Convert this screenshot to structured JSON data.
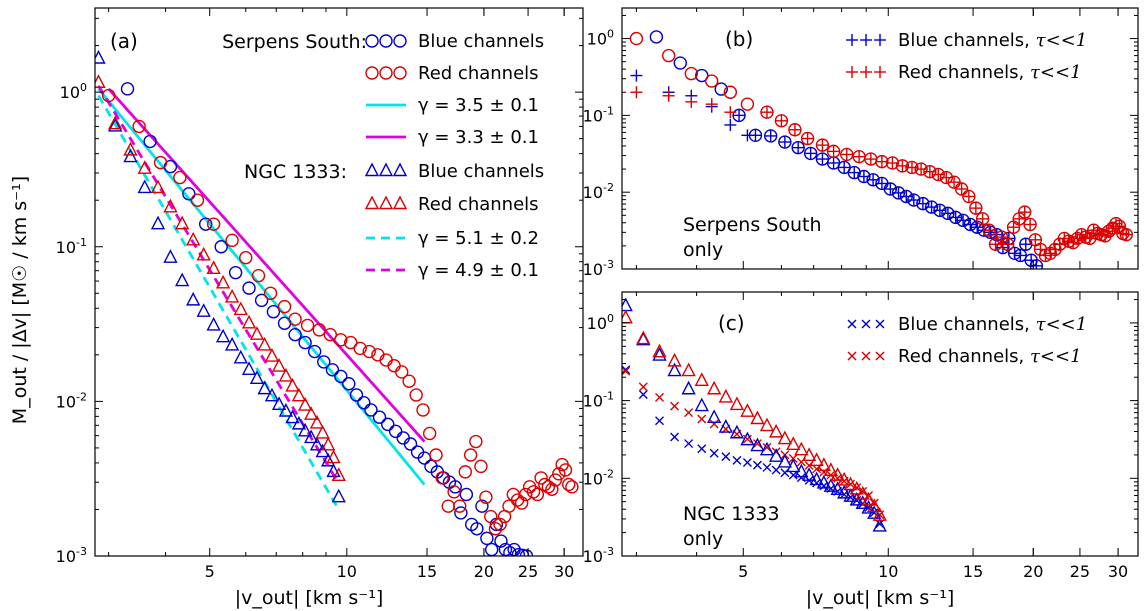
{
  "chart_data": [
    {
      "panel_label": "(a)",
      "type": "scatter",
      "xscale": "log",
      "yscale": "log",
      "xlim": [
        2.8,
        33
      ],
      "ylim": [
        0.001,
        3.5
      ],
      "ylabel": "M_out / |Δv| [M☉ / km s⁻¹]",
      "xlabel": "|v_out| [km s⁻¹]",
      "xticks": [
        5,
        10,
        15,
        20,
        25,
        30
      ],
      "group_labels": [
        "Serpens South:",
        "NGC 1333:"
      ],
      "series": [
        {
          "name": "Blue channels",
          "group": "Serpens South",
          "marker": "circle",
          "color": "#0000cc",
          "x": [
            3.3,
            3.7,
            4.1,
            4.5,
            4.9,
            5.3,
            5.7,
            6.1,
            6.5,
            6.9,
            7.3,
            7.7,
            8.1,
            8.5,
            8.9,
            9.3,
            9.7,
            10.1,
            10.5,
            10.9,
            11.3,
            11.8,
            12.3,
            12.8,
            13.3,
            13.8,
            14.3,
            14.8,
            15.3,
            15.8,
            16.3,
            16.8,
            17.3,
            17.8,
            18.3,
            18.8,
            19.3,
            19.8,
            20.3,
            20.8,
            21.3,
            21.8,
            22.3,
            22.8,
            23.3,
            23.8,
            24.3,
            24.8
          ],
          "y": [
            1.05,
            0.48,
            0.33,
            0.22,
            0.14,
            0.1,
            0.068,
            0.054,
            0.045,
            0.038,
            0.032,
            0.027,
            0.024,
            0.021,
            0.018,
            0.016,
            0.0145,
            0.013,
            0.011,
            0.0098,
            0.0088,
            0.0079,
            0.0071,
            0.0064,
            0.0058,
            0.0053,
            0.0047,
            0.0043,
            0.0038,
            0.0035,
            0.0032,
            0.003,
            0.0028,
            0.0019,
            0.0025,
            0.0016,
            0.0015,
            0.0021,
            0.0013,
            0.0011,
            0.0016,
            0.00125,
            0.0011,
            0.00105,
            0.0011,
            0.00102,
            0.00101,
            0.001
          ]
        },
        {
          "name": "Red channels",
          "group": "Serpens South",
          "marker": "circle",
          "color": "#dd0000",
          "x": [
            3.0,
            3.5,
            3.9,
            4.3,
            4.7,
            5.1,
            5.6,
            6.0,
            6.4,
            6.8,
            7.3,
            7.7,
            8.2,
            8.7,
            9.2,
            9.7,
            10.2,
            10.7,
            11.2,
            11.7,
            12.2,
            12.7,
            13.2,
            13.7,
            14.2,
            14.7,
            15.2,
            15.7,
            16.2,
            16.7,
            17.2,
            17.7,
            18.2,
            18.7,
            19.2,
            19.7,
            20.2,
            20.7,
            21.2,
            21.7,
            22.2,
            22.7,
            23.2,
            23.7,
            24.2,
            24.7,
            25.2,
            25.7,
            26.2,
            26.7,
            27.2,
            27.7,
            28.2,
            28.7,
            29.2,
            29.7,
            30.2,
            30.7,
            31.2
          ],
          "y": [
            0.95,
            0.6,
            0.35,
            0.28,
            0.2,
            0.14,
            0.11,
            0.085,
            0.065,
            0.05,
            0.041,
            0.034,
            0.031,
            0.029,
            0.027,
            0.025,
            0.024,
            0.022,
            0.021,
            0.02,
            0.0185,
            0.017,
            0.0155,
            0.0135,
            0.011,
            0.0088,
            0.0062,
            0.0045,
            0.0032,
            0.0021,
            0.0026,
            0.0021,
            0.0035,
            0.0045,
            0.0055,
            0.0038,
            0.0024,
            0.0018,
            0.0015,
            0.0016,
            0.0018,
            0.0021,
            0.0025,
            0.0023,
            0.0022,
            0.0025,
            0.0028,
            0.0026,
            0.0025,
            0.0032,
            0.0029,
            0.0028,
            0.0027,
            0.0031,
            0.0034,
            0.0039,
            0.0036,
            0.0029,
            0.0028
          ]
        },
        {
          "name": "Blue channels",
          "group": "NGC 1333",
          "marker": "triangle",
          "color": "#0000cc",
          "x": [
            2.85,
            3.1,
            3.35,
            3.6,
            3.85,
            4.1,
            4.35,
            4.6,
            4.85,
            5.1,
            5.35,
            5.6,
            5.85,
            6.1,
            6.35,
            6.6,
            6.85,
            7.1,
            7.35,
            7.6,
            7.85,
            8.1,
            8.35,
            8.6,
            8.85,
            9.1,
            9.35,
            9.6
          ],
          "y": [
            1.65,
            0.6,
            0.38,
            0.24,
            0.14,
            0.085,
            0.06,
            0.045,
            0.038,
            0.031,
            0.026,
            0.023,
            0.019,
            0.016,
            0.014,
            0.012,
            0.0108,
            0.0095,
            0.0086,
            0.0078,
            0.0071,
            0.0064,
            0.0058,
            0.0052,
            0.0047,
            0.0041,
            0.0035,
            0.0024
          ]
        },
        {
          "name": "Red channels",
          "group": "NGC 1333",
          "marker": "triangle",
          "color": "#dd0000",
          "x": [
            2.85,
            3.1,
            3.35,
            3.6,
            3.85,
            4.1,
            4.35,
            4.6,
            4.85,
            5.1,
            5.35,
            5.6,
            5.85,
            6.1,
            6.35,
            6.6,
            6.85,
            7.1,
            7.35,
            7.6,
            7.85,
            8.1,
            8.35,
            8.6,
            8.85,
            9.1,
            9.35,
            9.6
          ],
          "y": [
            1.15,
            0.62,
            0.42,
            0.32,
            0.24,
            0.18,
            0.14,
            0.11,
            0.088,
            0.072,
            0.058,
            0.047,
            0.039,
            0.032,
            0.027,
            0.023,
            0.0195,
            0.0168,
            0.0145,
            0.0125,
            0.0108,
            0.0094,
            0.0082,
            0.0072,
            0.0062,
            0.0052,
            0.0043,
            0.0033
          ]
        }
      ],
      "fits": [
        {
          "name": "γ = 3.5  ± 0.1",
          "color": "#00e5e5",
          "style": "solid",
          "x": [
            2.85,
            14.8
          ],
          "y": [
            1.05,
            0.0029
          ]
        },
        {
          "name": "γ = 3.3  ± 0.1",
          "color": "#e000e0",
          "style": "solid",
          "x": [
            3.0,
            14.8
          ],
          "y": [
            1.05,
            0.0055
          ]
        },
        {
          "name": "γ = 5.1  ± 0.2",
          "color": "#00e5e5",
          "style": "dashed",
          "x": [
            2.85,
            9.5
          ],
          "y": [
            0.95,
            0.0021
          ]
        },
        {
          "name": "γ = 4.9  ± 0.1",
          "color": "#e000e0",
          "style": "dashed",
          "x": [
            2.85,
            9.5
          ],
          "y": [
            1.1,
            0.0031
          ]
        }
      ]
    },
    {
      "panel_label": "(b)",
      "type": "scatter",
      "xscale": "log",
      "yscale": "log",
      "xlim": [
        2.8,
        33
      ],
      "ylim": [
        0.001,
        2.5
      ],
      "annotation": [
        "Serpens South",
        "only"
      ],
      "series": [
        {
          "name": "Blue channels, τ<<1",
          "marker": "circle-plus",
          "color": "#0000cc",
          "x": [
            4.9,
            5.3,
            5.7,
            6.1,
            6.5,
            6.9,
            7.3,
            7.7,
            8.1,
            8.5,
            8.9,
            9.3,
            9.7,
            10.1,
            10.5,
            10.9,
            11.3,
            11.8,
            12.3,
            12.8,
            13.3,
            13.8,
            14.3,
            14.8,
            15.3,
            15.8,
            16.3,
            16.8,
            17.3,
            17.8,
            18.3,
            18.8,
            19.3,
            19.8,
            20.3
          ],
          "y": [
            0.1,
            0.055,
            0.054,
            0.045,
            0.038,
            0.032,
            0.027,
            0.024,
            0.021,
            0.018,
            0.016,
            0.0145,
            0.013,
            0.011,
            0.0098,
            0.0088,
            0.0079,
            0.0071,
            0.0064,
            0.0058,
            0.0053,
            0.0047,
            0.0043,
            0.0038,
            0.0035,
            0.0032,
            0.003,
            0.0028,
            0.0019,
            0.0025,
            0.0016,
            0.0015,
            0.0021,
            0.0013,
            0.0011
          ]
        },
        {
          "name": "Red channels, τ<<1",
          "marker": "circle-plus",
          "color": "#dd0000",
          "x": [
            5.6,
            6.0,
            6.4,
            6.8,
            7.3,
            7.7,
            8.2,
            8.7,
            9.2,
            9.7,
            10.2,
            10.7,
            11.2,
            11.7,
            12.2,
            12.7,
            13.2,
            13.7,
            14.2,
            14.7,
            15.2,
            15.7,
            16.2,
            16.7,
            17.2,
            17.7,
            18.2,
            18.7,
            19.2,
            19.7,
            20.2,
            20.7,
            21.2,
            21.7,
            22.2,
            22.7,
            23.2,
            23.7,
            24.2,
            24.7,
            25.2,
            25.7,
            26.2,
            26.7,
            27.2,
            27.7,
            28.2,
            28.7,
            29.2,
            29.7,
            30.2,
            30.7,
            31.2
          ],
          "y": [
            0.11,
            0.085,
            0.065,
            0.05,
            0.041,
            0.034,
            0.031,
            0.029,
            0.027,
            0.025,
            0.024,
            0.022,
            0.021,
            0.02,
            0.0185,
            0.017,
            0.0155,
            0.0135,
            0.011,
            0.0088,
            0.0062,
            0.0045,
            0.0032,
            0.0021,
            0.0026,
            0.0021,
            0.0035,
            0.0045,
            0.0055,
            0.0038,
            0.0024,
            0.0018,
            0.0015,
            0.0016,
            0.0018,
            0.0021,
            0.0025,
            0.0023,
            0.0022,
            0.0025,
            0.0028,
            0.0026,
            0.0025,
            0.0032,
            0.0029,
            0.0028,
            0.0027,
            0.0031,
            0.0034,
            0.0039,
            0.0036,
            0.0029,
            0.0028
          ]
        },
        {
          "name": "",
          "marker": "circle",
          "color": "#0000cc",
          "x": [
            3.3,
            3.7,
            4.1,
            4.5
          ],
          "y": [
            1.05,
            0.48,
            0.33,
            0.22
          ]
        },
        {
          "name": "",
          "marker": "circle",
          "color": "#dd0000",
          "x": [
            3.0,
            3.5,
            3.9,
            4.3,
            4.7,
            5.1
          ],
          "y": [
            1.0,
            0.6,
            0.35,
            0.28,
            0.2,
            0.14
          ]
        },
        {
          "name": "",
          "marker": "plus",
          "color": "#0000cc",
          "x": [
            3.0,
            3.5,
            3.9,
            4.3,
            4.7,
            5.1
          ],
          "y": [
            0.33,
            0.2,
            0.18,
            0.13,
            0.075,
            0.055
          ]
        },
        {
          "name": "",
          "marker": "plus",
          "color": "#dd0000",
          "x": [
            3.0,
            3.5,
            3.9,
            4.3,
            4.7
          ],
          "y": [
            0.2,
            0.18,
            0.15,
            0.14,
            0.11
          ]
        }
      ]
    },
    {
      "panel_label": "(c)",
      "type": "scatter",
      "xscale": "log",
      "yscale": "log",
      "xlim": [
        2.8,
        33
      ],
      "ylim": [
        0.001,
        2.5
      ],
      "xlabel": "|v_out| [km s⁻¹]",
      "xticks": [
        5,
        10,
        15,
        20,
        25,
        30
      ],
      "annotation": [
        "NGC 1333",
        "only"
      ],
      "series": [
        {
          "name": "Blue channels, τ<<1",
          "marker": "x",
          "color": "#0000cc",
          "x": [
            2.85,
            3.1,
            3.35,
            3.6,
            3.85,
            4.1,
            4.35,
            4.6,
            4.85,
            5.1,
            5.35,
            5.6,
            5.85,
            6.1,
            6.35,
            6.6,
            6.85,
            7.1,
            7.35,
            7.6,
            7.85,
            8.1,
            8.35,
            8.6,
            8.85,
            9.1,
            9.35,
            9.6
          ],
          "y": [
            0.25,
            0.12,
            0.055,
            0.034,
            0.028,
            0.024,
            0.021,
            0.019,
            0.017,
            0.016,
            0.0148,
            0.0138,
            0.0128,
            0.0118,
            0.011,
            0.0102,
            0.0094,
            0.0087,
            0.008,
            0.0074,
            0.0068,
            0.0062,
            0.0057,
            0.0052,
            0.0047,
            0.0042,
            0.0036,
            0.0026
          ]
        },
        {
          "name": "Red channels, τ<<1",
          "marker": "x",
          "color": "#dd0000",
          "x": [
            2.85,
            3.1,
            3.35,
            3.6,
            3.85,
            4.1,
            4.35,
            4.6,
            4.85,
            5.1,
            5.35,
            5.6,
            5.85,
            6.1,
            6.35,
            6.6,
            6.85,
            7.1,
            7.35,
            7.6,
            7.85,
            8.1,
            8.35,
            8.6,
            8.85,
            9.1,
            9.35,
            9.6
          ],
          "y": [
            0.24,
            0.15,
            0.11,
            0.085,
            0.07,
            0.058,
            0.05,
            0.043,
            0.037,
            0.032,
            0.028,
            0.025,
            0.022,
            0.02,
            0.018,
            0.0162,
            0.0146,
            0.0132,
            0.012,
            0.011,
            0.01,
            0.0092,
            0.0084,
            0.0076,
            0.0068,
            0.006,
            0.0048,
            0.0034
          ]
        },
        {
          "name": "",
          "marker": "triangle",
          "color": "#0000cc",
          "x": [
            2.85,
            3.1,
            3.35,
            3.6,
            3.85,
            4.1,
            4.35,
            4.6,
            4.85,
            5.1,
            5.35,
            5.6,
            5.85,
            6.1,
            6.35,
            6.6,
            6.85,
            7.1,
            7.35,
            7.6,
            7.85,
            8.1,
            8.35,
            8.6,
            8.85,
            9.1,
            9.35,
            9.6
          ],
          "y": [
            1.65,
            0.6,
            0.38,
            0.24,
            0.14,
            0.085,
            0.06,
            0.045,
            0.038,
            0.031,
            0.026,
            0.023,
            0.019,
            0.016,
            0.014,
            0.012,
            0.0108,
            0.0095,
            0.0086,
            0.0078,
            0.0071,
            0.0064,
            0.0058,
            0.0052,
            0.0047,
            0.0041,
            0.0035,
            0.0024
          ]
        },
        {
          "name": "",
          "marker": "triangle",
          "color": "#dd0000",
          "x": [
            2.85,
            3.1,
            3.35,
            3.6,
            3.85,
            4.1,
            4.35,
            4.6,
            4.85,
            5.1,
            5.35,
            5.6,
            5.85,
            6.1,
            6.35,
            6.6,
            6.85,
            7.1,
            7.35,
            7.6,
            7.85,
            8.1,
            8.35,
            8.6,
            8.85,
            9.1,
            9.35,
            9.6
          ],
          "y": [
            1.15,
            0.62,
            0.42,
            0.32,
            0.24,
            0.18,
            0.14,
            0.11,
            0.088,
            0.072,
            0.058,
            0.047,
            0.039,
            0.032,
            0.027,
            0.023,
            0.0195,
            0.0168,
            0.0145,
            0.0125,
            0.0108,
            0.0094,
            0.0082,
            0.0072,
            0.0062,
            0.0052,
            0.0043,
            0.0033
          ]
        }
      ]
    }
  ]
}
